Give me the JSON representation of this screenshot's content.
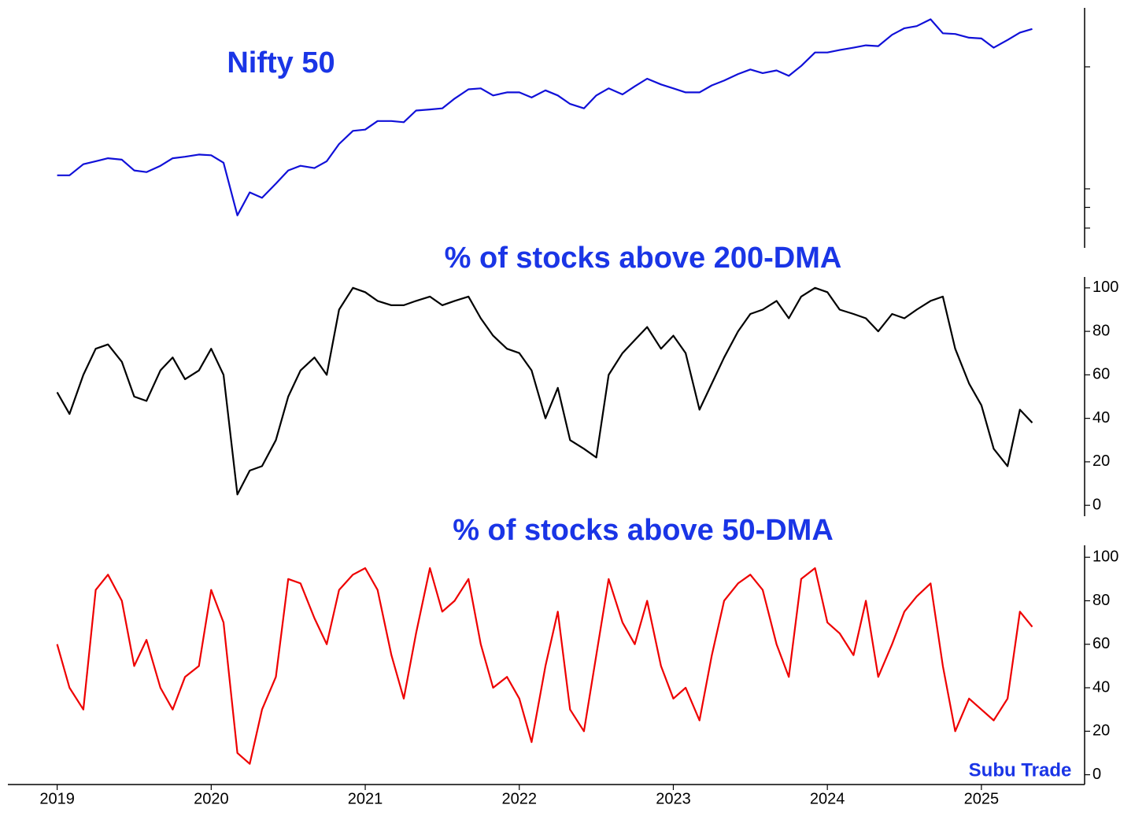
{
  "chart_data": [
    {
      "type": "line",
      "title": "Nifty 50",
      "log_scale": true,
      "ytick_labels": false,
      "color": "#1010d8",
      "xlim": [
        2018.68,
        2025.67
      ],
      "ylim": [
        7150,
        27960
      ],
      "yticks": [
        8000,
        9000,
        10000,
        20000
      ],
      "x": [
        2019,
        2019.08,
        2019.17,
        2019.25,
        2019.33,
        2019.42,
        2019.5,
        2019.58,
        2019.67,
        2019.75,
        2019.83,
        2019.92,
        2020,
        2020.08,
        2020.17,
        2020.25,
        2020.33,
        2020.42,
        2020.5,
        2020.58,
        2020.67,
        2020.75,
        2020.83,
        2020.92,
        2021,
        2021.08,
        2021.17,
        2021.25,
        2021.33,
        2021.42,
        2021.5,
        2021.58,
        2021.67,
        2021.75,
        2021.83,
        2021.92,
        2022,
        2022.08,
        2022.17,
        2022.25,
        2022.33,
        2022.42,
        2022.5,
        2022.58,
        2022.67,
        2022.75,
        2022.83,
        2022.92,
        2023,
        2023.08,
        2023.17,
        2023.25,
        2023.33,
        2023.42,
        2023.5,
        2023.58,
        2023.67,
        2023.75,
        2023.83,
        2023.92,
        2024,
        2024.08,
        2024.17,
        2024.25,
        2024.33,
        2024.42,
        2024.5,
        2024.58,
        2024.67,
        2024.75,
        2024.83,
        2024.92,
        2025,
        2025.08,
        2025.17,
        2025.25,
        2025.33
      ],
      "values": [
        10800,
        10800,
        11500,
        11700,
        11900,
        11800,
        11100,
        11000,
        11400,
        11900,
        12000,
        12150,
        12100,
        11600,
        8600,
        9800,
        9500,
        10300,
        11100,
        11400,
        11250,
        11700,
        12900,
        13900,
        14000,
        14700,
        14700,
        14600,
        15600,
        15700,
        15800,
        16700,
        17600,
        17700,
        17000,
        17300,
        17300,
        16800,
        17500,
        17000,
        16200,
        15800,
        17000,
        17700,
        17100,
        17900,
        18700,
        18100,
        17700,
        17300,
        17300,
        18000,
        18500,
        19200,
        19700,
        19300,
        19600,
        19000,
        20100,
        21700,
        21700,
        22000,
        22300,
        22600,
        22500,
        24000,
        24900,
        25200,
        26200,
        24200,
        24100,
        23600,
        23500,
        22300,
        23300,
        24300,
        24800
      ]
    },
    {
      "type": "line",
      "title": "% of stocks above 200-DMA",
      "color": "#000000",
      "xlim": [
        2018.68,
        2025.67
      ],
      "ylim": [
        -5,
        105
      ],
      "yticks": [
        0,
        20,
        40,
        60,
        80,
        100
      ],
      "x": [
        2019,
        2019.08,
        2019.17,
        2019.25,
        2019.33,
        2019.42,
        2019.5,
        2019.58,
        2019.67,
        2019.75,
        2019.83,
        2019.92,
        2020,
        2020.08,
        2020.17,
        2020.25,
        2020.33,
        2020.42,
        2020.5,
        2020.58,
        2020.67,
        2020.75,
        2020.83,
        2020.92,
        2021,
        2021.08,
        2021.17,
        2021.25,
        2021.33,
        2021.42,
        2021.5,
        2021.58,
        2021.67,
        2021.75,
        2021.83,
        2021.92,
        2022,
        2022.08,
        2022.17,
        2022.25,
        2022.33,
        2022.42,
        2022.5,
        2022.58,
        2022.67,
        2022.75,
        2022.83,
        2022.92,
        2023,
        2023.08,
        2023.17,
        2023.25,
        2023.33,
        2023.42,
        2023.5,
        2023.58,
        2023.67,
        2023.75,
        2023.83,
        2023.92,
        2024,
        2024.08,
        2024.17,
        2024.25,
        2024.33,
        2024.42,
        2024.5,
        2024.58,
        2024.67,
        2024.75,
        2024.83,
        2024.92,
        2025,
        2025.08,
        2025.17,
        2025.25,
        2025.33
      ],
      "values": [
        52,
        42,
        60,
        72,
        74,
        66,
        50,
        48,
        62,
        68,
        58,
        62,
        72,
        60,
        5,
        16,
        18,
        30,
        50,
        62,
        68,
        60,
        90,
        100,
        98,
        94,
        92,
        92,
        94,
        96,
        92,
        94,
        96,
        86,
        78,
        72,
        70,
        62,
        40,
        54,
        30,
        26,
        22,
        60,
        70,
        76,
        82,
        72,
        78,
        70,
        44,
        56,
        68,
        80,
        88,
        90,
        94,
        86,
        96,
        100,
        98,
        90,
        88,
        86,
        80,
        88,
        86,
        90,
        94,
        96,
        72,
        56,
        46,
        26,
        18,
        44,
        38
      ]
    },
    {
      "type": "line",
      "title": "% of stocks above 50-DMA",
      "annotation": "Subu Trade",
      "color": "#ee0000",
      "xlim": [
        2018.68,
        2025.67
      ],
      "ylim": [
        -4.5,
        105.5
      ],
      "yticks": [
        0,
        20,
        40,
        60,
        80,
        100
      ],
      "xticks": [
        2019,
        2020,
        2021,
        2022,
        2023,
        2024,
        2025
      ],
      "x": [
        2019,
        2019.08,
        2019.17,
        2019.25,
        2019.33,
        2019.42,
        2019.5,
        2019.58,
        2019.67,
        2019.75,
        2019.83,
        2019.92,
        2020,
        2020.08,
        2020.17,
        2020.25,
        2020.33,
        2020.42,
        2020.5,
        2020.58,
        2020.67,
        2020.75,
        2020.83,
        2020.92,
        2021,
        2021.08,
        2021.17,
        2021.25,
        2021.33,
        2021.42,
        2021.5,
        2021.58,
        2021.67,
        2021.75,
        2021.83,
        2021.92,
        2022,
        2022.08,
        2022.17,
        2022.25,
        2022.33,
        2022.42,
        2022.5,
        2022.58,
        2022.67,
        2022.75,
        2022.83,
        2022.92,
        2023,
        2023.08,
        2023.17,
        2023.25,
        2023.33,
        2023.42,
        2023.5,
        2023.58,
        2023.67,
        2023.75,
        2023.83,
        2023.92,
        2024,
        2024.08,
        2024.17,
        2024.25,
        2024.33,
        2024.42,
        2024.5,
        2024.58,
        2024.67,
        2024.75,
        2024.83,
        2024.92,
        2025,
        2025.08,
        2025.17,
        2025.25,
        2025.33
      ],
      "values": [
        60,
        40,
        30,
        85,
        92,
        80,
        50,
        62,
        40,
        30,
        45,
        50,
        85,
        70,
        10,
        5,
        30,
        45,
        90,
        88,
        72,
        60,
        85,
        92,
        95,
        85,
        55,
        35,
        65,
        95,
        75,
        80,
        90,
        60,
        40,
        45,
        35,
        15,
        50,
        75,
        30,
        20,
        55,
        90,
        70,
        60,
        80,
        50,
        35,
        40,
        25,
        55,
        80,
        88,
        92,
        85,
        60,
        45,
        90,
        95,
        70,
        65,
        55,
        80,
        45,
        60,
        75,
        82,
        88,
        50,
        20,
        35,
        30,
        25,
        35,
        75,
        68
      ]
    }
  ]
}
